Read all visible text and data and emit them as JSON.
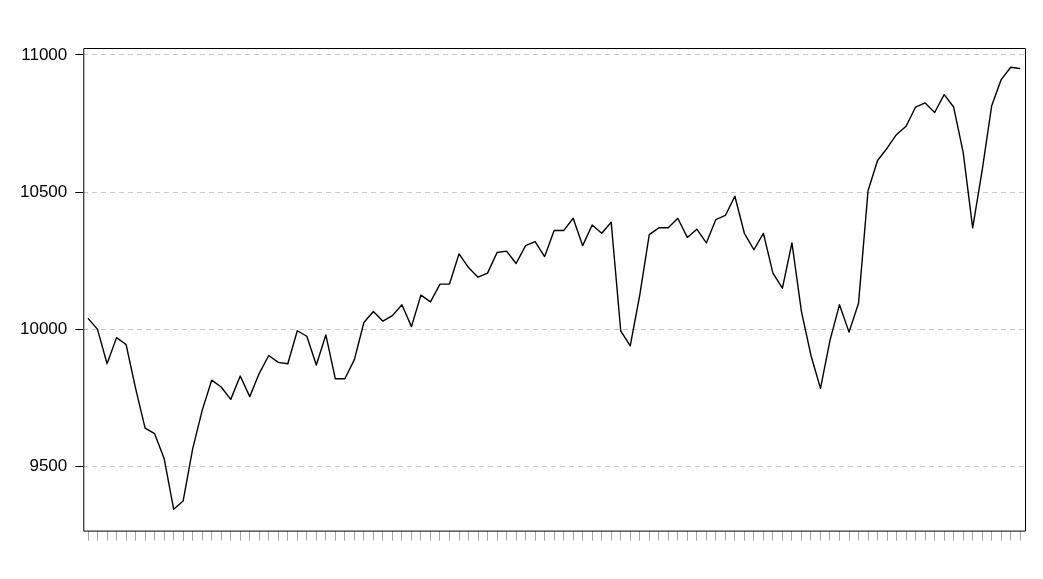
{
  "chart_data": {
    "type": "line",
    "categories": [
      null,
      null,
      null,
      null,
      null,
      null,
      null,
      null,
      null,
      null,
      null,
      null,
      null,
      null,
      null,
      null,
      null,
      null,
      null,
      null,
      null,
      null,
      null,
      null,
      null,
      null,
      null,
      null,
      null,
      null,
      null,
      null,
      null,
      null,
      null,
      null,
      null,
      null,
      null,
      null,
      null,
      null,
      null,
      null,
      null,
      null,
      null,
      null,
      null,
      null,
      null,
      null,
      null,
      null,
      null,
      null,
      null,
      null,
      null,
      null,
      null,
      null,
      null,
      null,
      null,
      null,
      null,
      null,
      null,
      null,
      null,
      null,
      null,
      null,
      null,
      null,
      null,
      null,
      null,
      null,
      null,
      null,
      null,
      null,
      null,
      null,
      null,
      null,
      null,
      null,
      null,
      null,
      null,
      null,
      null,
      null,
      null,
      null,
      null
    ],
    "values": [
      10040,
      10000,
      9875,
      9970,
      9945,
      9785,
      9640,
      9620,
      9530,
      9345,
      9375,
      9565,
      9705,
      9815,
      9790,
      9745,
      9830,
      9755,
      9840,
      9905,
      9880,
      9875,
      9995,
      9975,
      9870,
      9980,
      9820,
      9820,
      9890,
      10025,
      10065,
      10030,
      10050,
      10090,
      10010,
      10125,
      10100,
      10165,
      10165,
      10275,
      10225,
      10190,
      10205,
      10280,
      10285,
      10240,
      10305,
      10320,
      10265,
      10360,
      10360,
      10405,
      10305,
      10380,
      10350,
      10390,
      9995,
      9940,
      10125,
      10345,
      10370,
      10370,
      10405,
      10335,
      10365,
      10315,
      10400,
      10415,
      10485,
      10350,
      10290,
      10350,
      10205,
      10150,
      10315,
      10065,
      9905,
      9785,
      9960,
      10090,
      9990,
      10095,
      10505,
      10615,
      10660,
      10710,
      10740,
      10810,
      10825,
      10790,
      10855,
      10810,
      10645,
      10370,
      10580,
      10815,
      10910,
      10955,
      10950
    ],
    "color": "#000000",
    "marker": "none",
    "ylim": [
      9267,
      11025
    ],
    "yticks": [
      9500,
      10000,
      10500,
      11000
    ],
    "grid": "y"
  }
}
